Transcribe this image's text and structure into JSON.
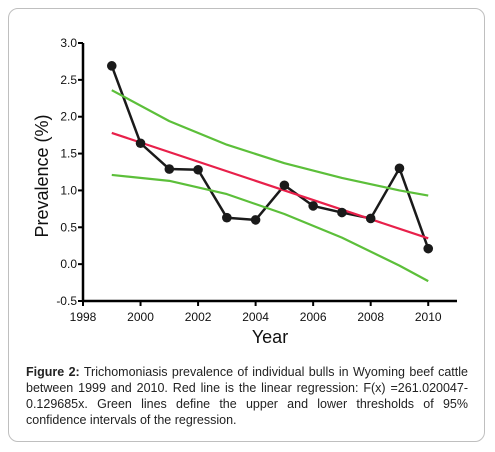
{
  "chart_data": {
    "type": "line",
    "title": "",
    "xlabel": "Year",
    "ylabel": "Prevalence (%)",
    "xlim": [
      1998,
      2011
    ],
    "ylim": [
      -0.5,
      3.0
    ],
    "xticks": [
      "1998",
      "2000",
      "2002",
      "2004",
      "2006",
      "2008",
      "2010"
    ],
    "yticks": [
      "-0.5",
      "0.0",
      "0.5",
      "1.0",
      "1.5",
      "2.0",
      "2.5",
      "3.0"
    ],
    "grid": false,
    "series": [
      {
        "x": [
          1999,
          2000,
          2001,
          2002,
          2003,
          2004,
          2005,
          2006,
          2007,
          2008,
          2009,
          2010
        ],
        "values": [
          2.69,
          1.64,
          1.29,
          1.28,
          0.63,
          0.6,
          1.07,
          0.79,
          0.7,
          0.62,
          1.3,
          0.21
        ],
        "color": "#1a1a1a"
      },
      {
        "x": [
          1999,
          2010
        ],
        "values": [
          1.78,
          0.35
        ],
        "color": "#e8204a"
      },
      {
        "x": [
          1999,
          2001,
          2003,
          2005,
          2007,
          2009,
          2010
        ],
        "values": [
          2.36,
          1.94,
          1.62,
          1.37,
          1.17,
          1.0,
          0.93
        ],
        "color": "#5cbf3a"
      },
      {
        "x": [
          1999,
          2001,
          2003,
          2005,
          2007,
          2009,
          2010
        ],
        "values": [
          1.21,
          1.13,
          0.95,
          0.68,
          0.36,
          -0.02,
          -0.23
        ],
        "color": "#5cbf3a"
      }
    ]
  },
  "caption": {
    "label": "Figure 2:",
    "text": " Trichomoniasis prevalence of individual bulls in Wyoming beef cattle between 1999 and 2010. Red line is the linear regression: F(x) =261.020047-0.129685x. Green lines define the upper and lower thresholds of 95% confidence intervals of the regression."
  }
}
